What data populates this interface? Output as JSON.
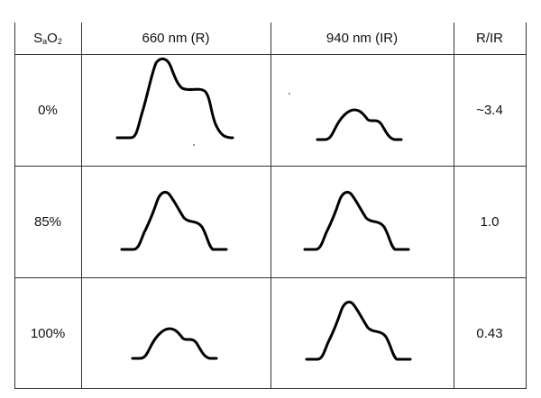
{
  "table": {
    "header": {
      "col0": {
        "main": "S",
        "sub": "a",
        "main2": "O",
        "sub2": "2"
      },
      "col1": "660 nm (R)",
      "col2": "940 nm (IR)",
      "col3": "R/IR"
    },
    "rows": [
      {
        "sao2": "0%",
        "ratio": "~3.4",
        "red_wave": "large",
        "ir_wave": "small"
      },
      {
        "sao2": "85%",
        "ratio": "1.0",
        "red_wave": "medium",
        "ir_wave": "medium"
      },
      {
        "sao2": "100%",
        "ratio": "0.43",
        "red_wave": "small",
        "ir_wave": "medium"
      }
    ]
  },
  "colors": {
    "line": "#333333",
    "wave": "#000000",
    "background": "#ffffff"
  }
}
